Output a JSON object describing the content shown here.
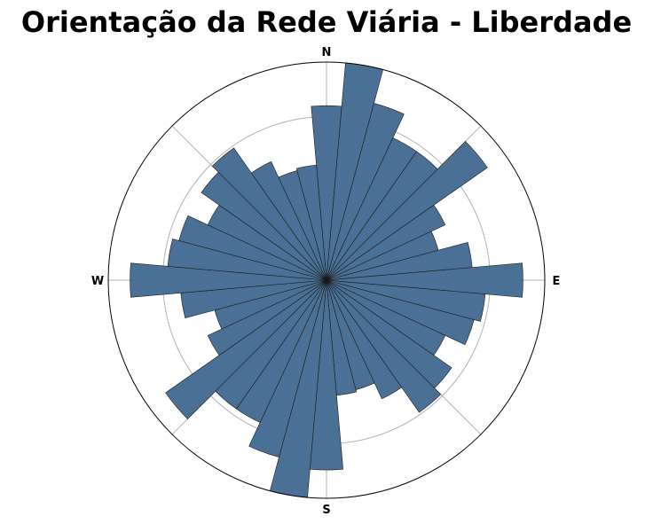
{
  "chart_data": {
    "type": "polar-bar",
    "title": "Orientação da Rede Viária - Liberdade",
    "directions": {
      "north": "N",
      "east": "E",
      "south": "S",
      "west": "W"
    },
    "bin_count": 36,
    "bin_width_deg": 10,
    "bin_centers_deg": [
      0,
      10,
      20,
      30,
      40,
      50,
      60,
      70,
      80,
      90,
      100,
      110,
      120,
      130,
      140,
      150,
      160,
      170,
      180,
      190,
      200,
      210,
      220,
      230,
      240,
      250,
      260,
      270,
      280,
      290,
      300,
      310,
      320,
      330,
      340,
      350
    ],
    "values": [
      0.8,
      1.0,
      0.84,
      0.72,
      0.72,
      0.9,
      0.6,
      0.53,
      0.67,
      0.9,
      0.73,
      0.7,
      0.6,
      0.7,
      0.74,
      0.6,
      0.52,
      0.53,
      0.87,
      1.0,
      0.84,
      0.72,
      0.72,
      0.9,
      0.6,
      0.53,
      0.67,
      0.9,
      0.73,
      0.7,
      0.6,
      0.7,
      0.74,
      0.6,
      0.52,
      0.53
    ],
    "rmax": 1.0,
    "grid": true,
    "colors": {
      "bar": "#4a7095",
      "bar_edge": "#1a1a1a",
      "grid": "#b0b0b0",
      "frame": "#000000"
    }
  }
}
